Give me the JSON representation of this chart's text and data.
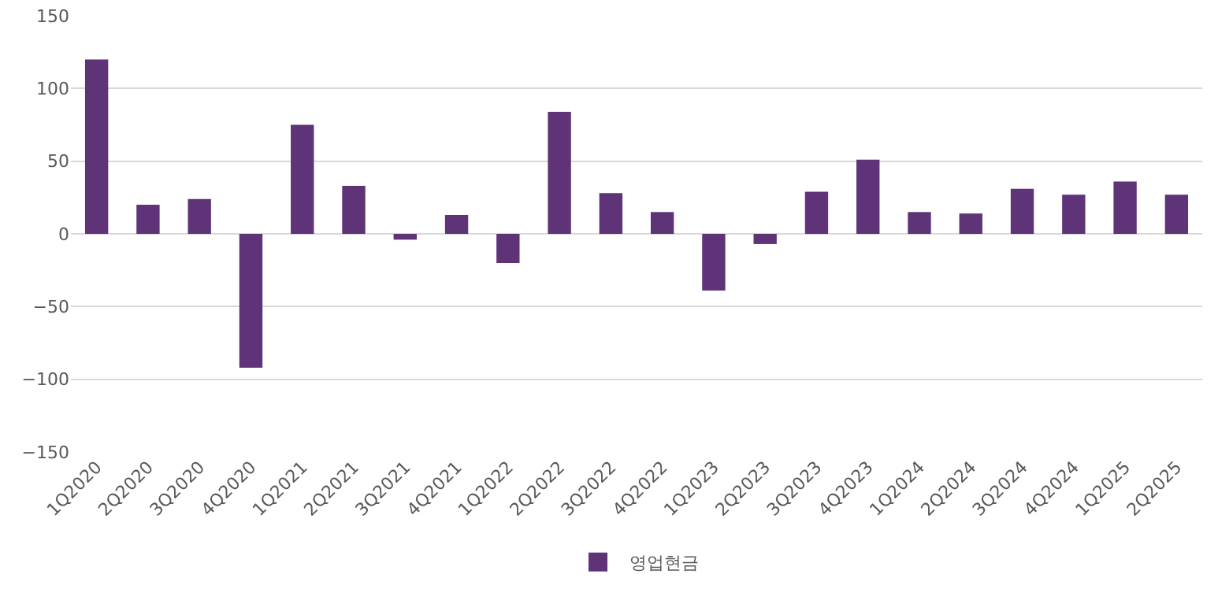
{
  "chart_data": {
    "type": "bar",
    "categories": [
      "1Q2020",
      "2Q2020",
      "3Q2020",
      "4Q2020",
      "1Q2021",
      "2Q2021",
      "3Q2021",
      "4Q2021",
      "1Q2022",
      "2Q2022",
      "3Q2022",
      "4Q2022",
      "1Q2023",
      "2Q2023",
      "3Q2023",
      "4Q2023",
      "1Q2024",
      "2Q2024",
      "3Q2024",
      "4Q2024",
      "1Q2025",
      "2Q2025"
    ],
    "series": [
      {
        "name": "영업현금",
        "color": "#5f3378",
        "values": [
          120,
          20,
          24,
          -92,
          75,
          33,
          -4,
          13,
          -20,
          84,
          28,
          15,
          -39,
          -7,
          29,
          51,
          15,
          14,
          31,
          27,
          36,
          27
        ]
      }
    ],
    "ylim": [
      -150,
      150
    ],
    "yticks": [
      -150,
      -100,
      -50,
      0,
      50,
      100,
      150
    ],
    "grid": "y",
    "legend": "bottom"
  }
}
